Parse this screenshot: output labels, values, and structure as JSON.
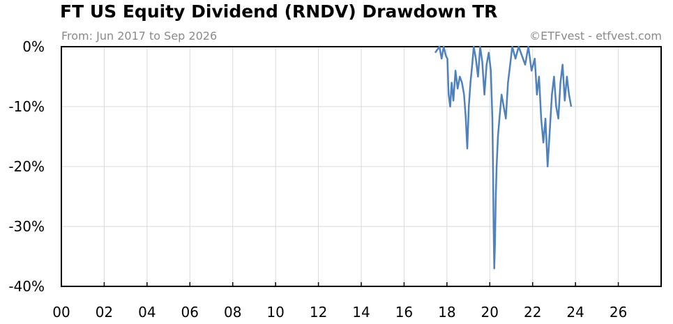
{
  "title": "FT US Equity Dividend (RNDV) Drawdown TR",
  "subtitle": "From: Jun 2017 to Sep 2026",
  "credit": "©ETFvest - etfvest.com",
  "colors": {
    "line": "#4f81bd",
    "grid": "#d9d9d9",
    "axis": "#000000"
  },
  "chart_data": {
    "type": "line",
    "title": "FT US Equity Dividend (RNDV) Drawdown TR",
    "subtitle": "From: Jun 2017 to Sep 2026",
    "xlabel": "",
    "ylabel": "",
    "xlim": [
      2000,
      2028
    ],
    "ylim": [
      -40,
      0
    ],
    "grid": true,
    "legend": "none",
    "xticks": [
      2000,
      2002,
      2004,
      2006,
      2008,
      2010,
      2012,
      2014,
      2016,
      2018,
      2020,
      2022,
      2024,
      2026
    ],
    "xtick_labels": [
      "00",
      "02",
      "04",
      "06",
      "08",
      "10",
      "12",
      "14",
      "16",
      "18",
      "20",
      "22",
      "24",
      "26"
    ],
    "yticks": [
      0,
      -10,
      -20,
      -30,
      -40
    ],
    "ytick_labels": [
      "0%",
      "-10%",
      "-20%",
      "-30%",
      "-40%"
    ],
    "series": [
      {
        "x": [
          2017.45,
          2017.55,
          2017.65,
          2017.75,
          2017.85,
          2017.95,
          2018.02,
          2018.08,
          2018.15,
          2018.22,
          2018.3,
          2018.4,
          2018.5,
          2018.6,
          2018.7,
          2018.8,
          2018.88,
          2018.95,
          2019.02,
          2019.1,
          2019.18,
          2019.25,
          2019.35,
          2019.45,
          2019.55,
          2019.65,
          2019.75,
          2019.85,
          2019.95,
          2020.05,
          2020.12,
          2020.15,
          2020.18,
          2020.21,
          2020.24,
          2020.28,
          2020.32,
          2020.38,
          2020.45,
          2020.55,
          2020.65,
          2020.75,
          2020.85,
          2020.95,
          2021.05,
          2021.2,
          2021.35,
          2021.5,
          2021.65,
          2021.8,
          2021.95,
          2022.1,
          2022.2,
          2022.3,
          2022.4,
          2022.5,
          2022.6,
          2022.7,
          2022.8,
          2022.9,
          2023.0,
          2023.1,
          2023.2,
          2023.3,
          2023.4,
          2023.5,
          2023.6,
          2023.7,
          2023.8
        ],
        "y": [
          -1.0,
          -0.5,
          0,
          -2.0,
          0,
          -1.5,
          -2.0,
          -8.0,
          -10.0,
          -6.0,
          -9.0,
          -4.0,
          -7.0,
          -5.0,
          -6.0,
          -8.0,
          -12.0,
          -17.0,
          -10.0,
          -6.0,
          -3.0,
          0,
          -2.0,
          -5.0,
          0,
          -2.5,
          -8.0,
          -3.0,
          -1.0,
          -4.0,
          -12.0,
          -20.0,
          -30.0,
          -37.0,
          -33.0,
          -25.0,
          -20.0,
          -15.0,
          -12.0,
          -8.0,
          -10.0,
          -12.0,
          -6.0,
          -3.0,
          0,
          -2.0,
          0,
          -1.5,
          -3.0,
          0,
          -4.0,
          -2.0,
          -8.0,
          -5.0,
          -12.0,
          -16.0,
          -12.0,
          -20.0,
          -14.0,
          -8.0,
          -5.0,
          -10.0,
          -12.0,
          -6.0,
          -3.0,
          -9.0,
          -5.0,
          -8.0,
          -10.0
        ]
      }
    ]
  }
}
